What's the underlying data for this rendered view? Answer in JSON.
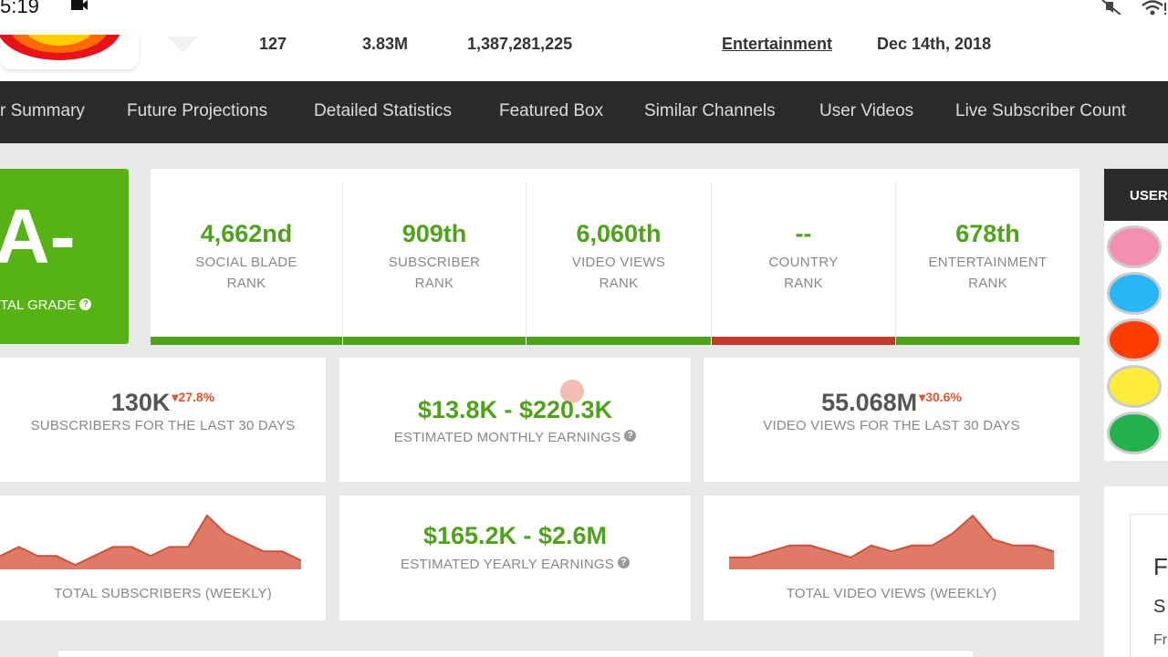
{
  "status_bar": {
    "time": "5:19"
  },
  "channel_stats": {
    "uploads": "127",
    "subscribers": "3.83M",
    "video_views": "1,387,281,225",
    "channel_type": "Entertainment",
    "user_created": "Dec 14th, 2018"
  },
  "nav": {
    "items": [
      "r Summary",
      "Future Projections",
      "Detailed Statistics",
      "Featured Box",
      "Similar Channels",
      "User Videos",
      "Live Subscriber Count"
    ]
  },
  "grade": {
    "letter": "A-",
    "label": "TAL GRADE",
    "color": "#57b214"
  },
  "ranks": [
    {
      "value": "4,662nd",
      "label_line1": "SOCIAL BLADE",
      "label_line2": "RANK",
      "bar_color": "#4ea31a"
    },
    {
      "value": "909th",
      "label_line1": "SUBSCRIBER",
      "label_line2": "RANK",
      "bar_color": "#4ea31a"
    },
    {
      "value": "6,060th",
      "label_line1": "VIDEO VIEWS",
      "label_line2": "RANK",
      "bar_color": "#4ea31a"
    },
    {
      "value": "--",
      "label_line1": "COUNTRY",
      "label_line2": "RANK",
      "bar_color": "#c0392b"
    },
    {
      "value": "678th",
      "label_line1": "ENTERTAINMENT",
      "label_line2": "RANK",
      "bar_color": "#4ea31a"
    }
  ],
  "cards": {
    "subs30": {
      "value": "130K",
      "delta": "27.8%",
      "label": "SUBSCRIBERS FOR THE LAST 30 DAYS"
    },
    "monthly": {
      "value": "$13.8K  -  $220.3K",
      "label": "ESTIMATED MONTHLY EARNINGS"
    },
    "views30": {
      "value": "55.068M",
      "delta": "30.6%",
      "label": "VIDEO VIEWS FOR THE LAST 30 DAYS"
    },
    "yearly": {
      "value": "$165.2K  -  $2.6M",
      "label": "ESTIMATED YEARLY EARNINGS"
    },
    "total_subs_label": "TOTAL SUBSCRIBERS (WEEKLY)",
    "total_views_label": "TOTAL VIDEO VIEWS (WEEKLY)"
  },
  "sparklines": {
    "subscribers_weekly": [
      3,
      5,
      3,
      3,
      1,
      3,
      5,
      5,
      3,
      5,
      5,
      12,
      8,
      6,
      4,
      4,
      2
    ],
    "views_weekly": [
      2,
      2,
      3,
      4,
      4,
      3,
      2,
      4,
      3,
      4,
      4,
      6,
      9,
      5,
      4,
      4,
      3
    ]
  },
  "sidebar": {
    "header": "USERS",
    "avatar_colors": [
      "#f48fb1",
      "#29b6f6",
      "#ff3d00",
      "#ffeb3b",
      "#22b14c"
    ],
    "text1": "F",
    "text2": "S",
    "text3": "Fr"
  },
  "colors": {
    "accent_green": "#4ea31a",
    "nav_bg": "#2b2b2b",
    "chart_fill": "#e07a66",
    "chart_stroke": "#c9533e",
    "negative": "#e1532d"
  }
}
